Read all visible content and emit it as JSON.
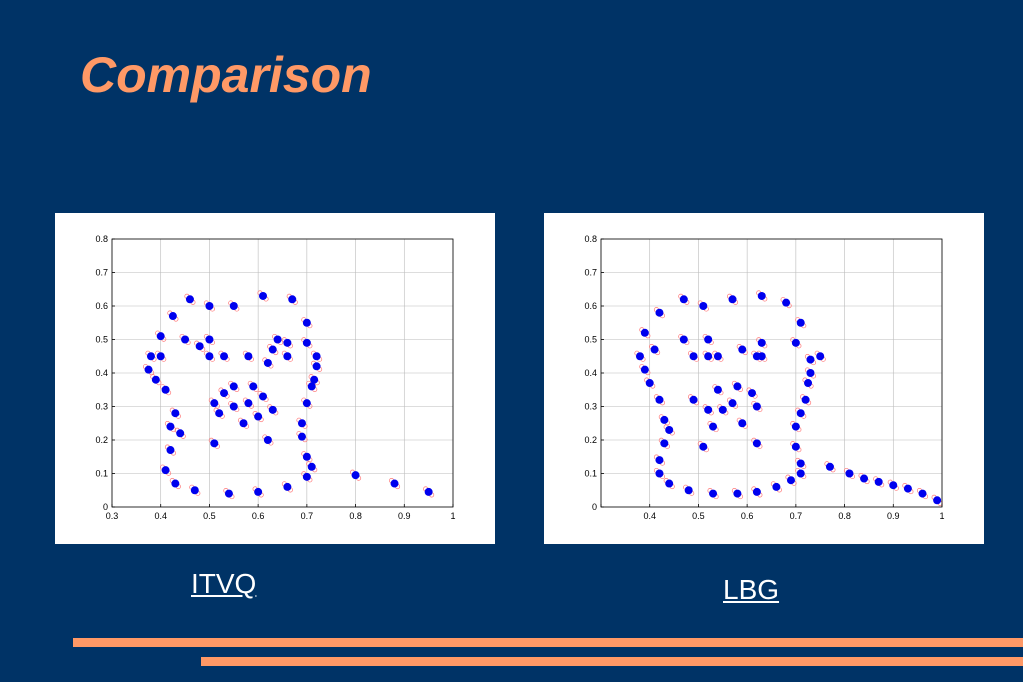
{
  "slide": {
    "title": "Comparison",
    "colors": {
      "background": "#003366",
      "accent": "#ff9966",
      "points": "#0000ee",
      "trace": "#ff7777"
    }
  },
  "captions": {
    "left": "ITVQ",
    "right": "LBG"
  },
  "chart_data": [
    {
      "type": "scatter",
      "title": "",
      "xlabel": "",
      "ylabel": "",
      "xlim": [
        0.3,
        1
      ],
      "ylim": [
        0,
        0.8
      ],
      "xticks": [
        "0.3",
        "0.4",
        "0.5",
        "0.6",
        "0.7",
        "0.8",
        "0.9",
        "1"
      ],
      "yticks": [
        "0",
        "0.1",
        "0.2",
        "0.3",
        "0.4",
        "0.5",
        "0.6",
        "0.7",
        "0.8"
      ],
      "grid": true,
      "codebook": [
        [
          0.46,
          0.62
        ],
        [
          0.5,
          0.6
        ],
        [
          0.55,
          0.6
        ],
        [
          0.61,
          0.63
        ],
        [
          0.67,
          0.62
        ],
        [
          0.7,
          0.55
        ],
        [
          0.425,
          0.57
        ],
        [
          0.4,
          0.51
        ],
        [
          0.38,
          0.45
        ],
        [
          0.375,
          0.41
        ],
        [
          0.39,
          0.38
        ],
        [
          0.41,
          0.35
        ],
        [
          0.4,
          0.45
        ],
        [
          0.43,
          0.28
        ],
        [
          0.42,
          0.24
        ],
        [
          0.44,
          0.22
        ],
        [
          0.42,
          0.17
        ],
        [
          0.41,
          0.11
        ],
        [
          0.43,
          0.07
        ],
        [
          0.47,
          0.05
        ],
        [
          0.54,
          0.04
        ],
        [
          0.6,
          0.045
        ],
        [
          0.66,
          0.06
        ],
        [
          0.7,
          0.09
        ],
        [
          0.71,
          0.12
        ],
        [
          0.7,
          0.15
        ],
        [
          0.69,
          0.21
        ],
        [
          0.69,
          0.25
        ],
        [
          0.7,
          0.31
        ],
        [
          0.71,
          0.36
        ],
        [
          0.715,
          0.38
        ],
        [
          0.72,
          0.42
        ],
        [
          0.72,
          0.45
        ],
        [
          0.7,
          0.49
        ],
        [
          0.45,
          0.5
        ],
        [
          0.48,
          0.48
        ],
        [
          0.5,
          0.5
        ],
        [
          0.5,
          0.45
        ],
        [
          0.53,
          0.45
        ],
        [
          0.58,
          0.45
        ],
        [
          0.62,
          0.43
        ],
        [
          0.63,
          0.47
        ],
        [
          0.64,
          0.5
        ],
        [
          0.66,
          0.49
        ],
        [
          0.66,
          0.45
        ],
        [
          0.51,
          0.31
        ],
        [
          0.53,
          0.34
        ],
        [
          0.55,
          0.36
        ],
        [
          0.59,
          0.36
        ],
        [
          0.61,
          0.33
        ],
        [
          0.58,
          0.31
        ],
        [
          0.55,
          0.3
        ],
        [
          0.52,
          0.28
        ],
        [
          0.57,
          0.25
        ],
        [
          0.6,
          0.27
        ],
        [
          0.62,
          0.2
        ],
        [
          0.63,
          0.29
        ],
        [
          0.51,
          0.19
        ],
        [
          0.8,
          0.095
        ],
        [
          0.88,
          0.07
        ],
        [
          0.95,
          0.045
        ]
      ]
    },
    {
      "type": "scatter",
      "title": "",
      "xlabel": "",
      "ylabel": "",
      "xlim": [
        0.3,
        1
      ],
      "ylim": [
        0,
        0.8
      ],
      "xticks": [
        "",
        "0.4",
        "0.5",
        "0.6",
        "0.7",
        "0.8",
        "0.9",
        "1"
      ],
      "yticks": [
        "0",
        "0.1",
        "0.2",
        "0.3",
        "0.4",
        "0.5",
        "0.6",
        "0.7",
        "0.8"
      ],
      "grid": true,
      "codebook": [
        [
          0.47,
          0.62
        ],
        [
          0.51,
          0.6
        ],
        [
          0.57,
          0.62
        ],
        [
          0.63,
          0.63
        ],
        [
          0.68,
          0.61
        ],
        [
          0.71,
          0.55
        ],
        [
          0.42,
          0.58
        ],
        [
          0.39,
          0.52
        ],
        [
          0.38,
          0.45
        ],
        [
          0.39,
          0.41
        ],
        [
          0.4,
          0.37
        ],
        [
          0.41,
          0.47
        ],
        [
          0.42,
          0.32
        ],
        [
          0.43,
          0.26
        ],
        [
          0.44,
          0.23
        ],
        [
          0.43,
          0.19
        ],
        [
          0.42,
          0.14
        ],
        [
          0.42,
          0.1
        ],
        [
          0.44,
          0.07
        ],
        [
          0.48,
          0.05
        ],
        [
          0.53,
          0.04
        ],
        [
          0.58,
          0.04
        ],
        [
          0.62,
          0.045
        ],
        [
          0.66,
          0.06
        ],
        [
          0.69,
          0.08
        ],
        [
          0.71,
          0.1
        ],
        [
          0.71,
          0.13
        ],
        [
          0.7,
          0.18
        ],
        [
          0.7,
          0.24
        ],
        [
          0.71,
          0.28
        ],
        [
          0.72,
          0.32
        ],
        [
          0.725,
          0.37
        ],
        [
          0.73,
          0.4
        ],
        [
          0.73,
          0.44
        ],
        [
          0.75,
          0.45
        ],
        [
          0.47,
          0.5
        ],
        [
          0.49,
          0.45
        ],
        [
          0.52,
          0.45
        ],
        [
          0.52,
          0.5
        ],
        [
          0.54,
          0.45
        ],
        [
          0.59,
          0.47
        ],
        [
          0.63,
          0.49
        ],
        [
          0.62,
          0.45
        ],
        [
          0.63,
          0.45
        ],
        [
          0.7,
          0.49
        ],
        [
          0.49,
          0.32
        ],
        [
          0.52,
          0.29
        ],
        [
          0.54,
          0.35
        ],
        [
          0.58,
          0.36
        ],
        [
          0.61,
          0.34
        ],
        [
          0.57,
          0.31
        ],
        [
          0.55,
          0.29
        ],
        [
          0.53,
          0.24
        ],
        [
          0.59,
          0.25
        ],
        [
          0.62,
          0.3
        ],
        [
          0.62,
          0.19
        ],
        [
          0.51,
          0.18
        ],
        [
          0.77,
          0.12
        ],
        [
          0.81,
          0.1
        ],
        [
          0.84,
          0.085
        ],
        [
          0.87,
          0.075
        ],
        [
          0.9,
          0.065
        ],
        [
          0.93,
          0.055
        ],
        [
          0.96,
          0.04
        ],
        [
          0.99,
          0.02
        ]
      ]
    }
  ]
}
